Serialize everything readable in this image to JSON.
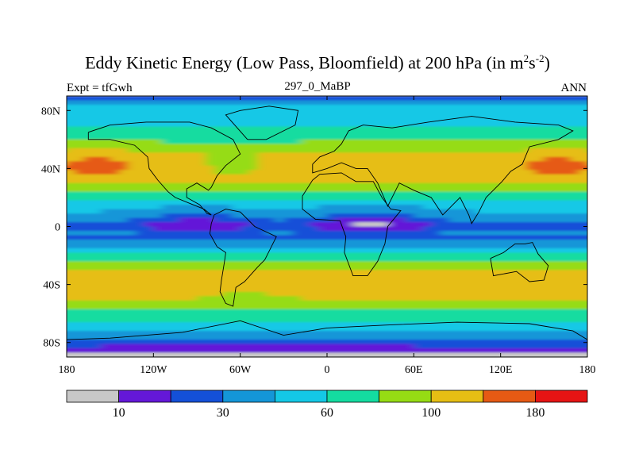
{
  "chart_data": {
    "type": "heatmap",
    "title_main": "Eddy Kinetic Energy (Low Pass, Bloomfield) at 200 hPa (in m",
    "title_unit_m_exp": "2",
    "title_unit_s": "s",
    "title_unit_s_exp": "-2",
    "title_close": ")",
    "left_label": "Expt = tfGwh",
    "center_label": "297_0_MaBP",
    "right_label": "ANN",
    "xlim": [
      -180,
      180
    ],
    "ylim": [
      -90,
      90
    ],
    "x_ticks": [
      {
        "value": -180,
        "label": "180"
      },
      {
        "value": -120,
        "label": "120W"
      },
      {
        "value": -60,
        "label": "60W"
      },
      {
        "value": 0,
        "label": "0"
      },
      {
        "value": 60,
        "label": "60E"
      },
      {
        "value": 120,
        "label": "120E"
      },
      {
        "value": 180,
        "label": "180"
      }
    ],
    "y_ticks": [
      {
        "value": 80,
        "label": "80N"
      },
      {
        "value": 40,
        "label": "40N"
      },
      {
        "value": 0,
        "label": "0"
      },
      {
        "value": -40,
        "label": "40S"
      },
      {
        "value": -80,
        "label": "80S"
      }
    ],
    "levels": [
      10,
      20,
      30,
      45,
      60,
      80,
      100,
      140,
      180
    ],
    "level_labels": [
      {
        "after_box": 1,
        "label": "10"
      },
      {
        "after_box": 3,
        "label": "30"
      },
      {
        "after_box": 5,
        "label": "60"
      },
      {
        "after_box": 7,
        "label": "100"
      },
      {
        "after_box": 9,
        "label": "180"
      }
    ],
    "colors": [
      "#c8c8c8",
      "#6418d8",
      "#1450d8",
      "#1496d8",
      "#14c8e6",
      "#14dca0",
      "#96dc14",
      "#e6be14",
      "#e65a14",
      "#e61414"
    ],
    "zonal_profile": {
      "lat": [
        -90,
        -85,
        -80,
        -75,
        -70,
        -60,
        -55,
        -50,
        -45,
        -40,
        -32,
        -25,
        -18,
        -12,
        -8,
        -5,
        0,
        5,
        10,
        15,
        20,
        27,
        33,
        40,
        48,
        55,
        62,
        70,
        80,
        85,
        90
      ],
      "eke": [
        5,
        15,
        25,
        35,
        52,
        75,
        90,
        100,
        110,
        118,
        110,
        80,
        55,
        40,
        28,
        33,
        22,
        35,
        45,
        52,
        68,
        95,
        110,
        125,
        112,
        90,
        70,
        58,
        52,
        45,
        20
      ]
    }
  }
}
